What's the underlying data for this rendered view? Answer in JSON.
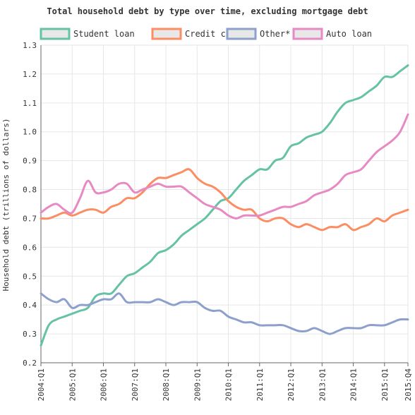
{
  "chart_data": {
    "type": "line",
    "title": "Total household debt by type over time, excluding mortgage debt",
    "ylabel": "Household debt (trillions of dollars)",
    "xlabel": "",
    "ylim": [
      0.2,
      1.3
    ],
    "yticks": [
      0.2,
      0.3,
      0.4,
      0.5,
      0.6,
      0.7,
      0.8,
      0.9,
      1.0,
      1.1,
      1.2,
      1.3
    ],
    "ytick_labels": [
      "0.2",
      "0.3",
      "0.4",
      "0.5",
      "0.6",
      "0.7",
      "0.8",
      "0.9",
      "1.0",
      "1.1",
      "1.2",
      "1.3"
    ],
    "xtick_labels": [
      "2004:Q1",
      "2005:Q1",
      "2006:Q1",
      "2007:Q1",
      "2008:Q1",
      "2009:Q1",
      "2010:Q1",
      "2011:Q1",
      "2012:Q1",
      "2013:Q1",
      "2014:Q1",
      "2015:Q1",
      "2015:Q4"
    ],
    "x": [
      "2004:Q1",
      "2004:Q2",
      "2004:Q3",
      "2004:Q4",
      "2005:Q1",
      "2005:Q2",
      "2005:Q3",
      "2005:Q4",
      "2006:Q1",
      "2006:Q2",
      "2006:Q3",
      "2006:Q4",
      "2007:Q1",
      "2007:Q2",
      "2007:Q3",
      "2007:Q4",
      "2008:Q1",
      "2008:Q2",
      "2008:Q3",
      "2008:Q4",
      "2009:Q1",
      "2009:Q2",
      "2009:Q3",
      "2009:Q4",
      "2010:Q1",
      "2010:Q2",
      "2010:Q3",
      "2010:Q4",
      "2011:Q1",
      "2011:Q2",
      "2011:Q3",
      "2011:Q4",
      "2012:Q1",
      "2012:Q2",
      "2012:Q3",
      "2012:Q4",
      "2013:Q1",
      "2013:Q2",
      "2013:Q3",
      "2013:Q4",
      "2014:Q1",
      "2014:Q2",
      "2014:Q3",
      "2014:Q4",
      "2015:Q1",
      "2015:Q2",
      "2015:Q3",
      "2015:Q4"
    ],
    "grid": true,
    "legend_position": "top",
    "series": [
      {
        "name": "Student loan",
        "color": "#66c2a5",
        "values": [
          0.26,
          0.33,
          0.35,
          0.36,
          0.37,
          0.38,
          0.39,
          0.43,
          0.44,
          0.44,
          0.47,
          0.5,
          0.51,
          0.53,
          0.55,
          0.58,
          0.59,
          0.61,
          0.64,
          0.66,
          0.68,
          0.7,
          0.73,
          0.76,
          0.77,
          0.8,
          0.83,
          0.85,
          0.87,
          0.87,
          0.9,
          0.91,
          0.95,
          0.96,
          0.98,
          0.99,
          1.0,
          1.03,
          1.07,
          1.1,
          1.11,
          1.12,
          1.14,
          1.16,
          1.19,
          1.19,
          1.21,
          1.23
        ]
      },
      {
        "name": "Credit card",
        "color": "#fc8d62",
        "values": [
          0.7,
          0.7,
          0.71,
          0.72,
          0.71,
          0.72,
          0.73,
          0.73,
          0.72,
          0.74,
          0.75,
          0.77,
          0.77,
          0.79,
          0.82,
          0.84,
          0.84,
          0.85,
          0.86,
          0.87,
          0.84,
          0.82,
          0.81,
          0.79,
          0.76,
          0.74,
          0.73,
          0.73,
          0.7,
          0.69,
          0.7,
          0.7,
          0.68,
          0.67,
          0.68,
          0.67,
          0.66,
          0.67,
          0.67,
          0.68,
          0.66,
          0.67,
          0.68,
          0.7,
          0.69,
          0.71,
          0.72,
          0.73
        ]
      },
      {
        "name": "Other*",
        "color": "#8da0cb",
        "values": [
          0.44,
          0.42,
          0.41,
          0.42,
          0.39,
          0.4,
          0.4,
          0.41,
          0.42,
          0.42,
          0.44,
          0.41,
          0.41,
          0.41,
          0.41,
          0.42,
          0.41,
          0.4,
          0.41,
          0.41,
          0.41,
          0.39,
          0.38,
          0.38,
          0.36,
          0.35,
          0.34,
          0.34,
          0.33,
          0.33,
          0.33,
          0.33,
          0.32,
          0.31,
          0.31,
          0.32,
          0.31,
          0.3,
          0.31,
          0.32,
          0.32,
          0.32,
          0.33,
          0.33,
          0.33,
          0.34,
          0.35,
          0.35
        ]
      },
      {
        "name": "Auto loan",
        "color": "#e78ac3",
        "values": [
          0.72,
          0.74,
          0.75,
          0.73,
          0.72,
          0.77,
          0.83,
          0.79,
          0.79,
          0.8,
          0.82,
          0.82,
          0.79,
          0.8,
          0.81,
          0.82,
          0.81,
          0.81,
          0.81,
          0.79,
          0.77,
          0.75,
          0.74,
          0.73,
          0.71,
          0.7,
          0.71,
          0.71,
          0.71,
          0.72,
          0.73,
          0.74,
          0.74,
          0.75,
          0.76,
          0.78,
          0.79,
          0.8,
          0.82,
          0.85,
          0.86,
          0.87,
          0.9,
          0.93,
          0.95,
          0.97,
          1.0,
          1.06
        ]
      }
    ]
  }
}
